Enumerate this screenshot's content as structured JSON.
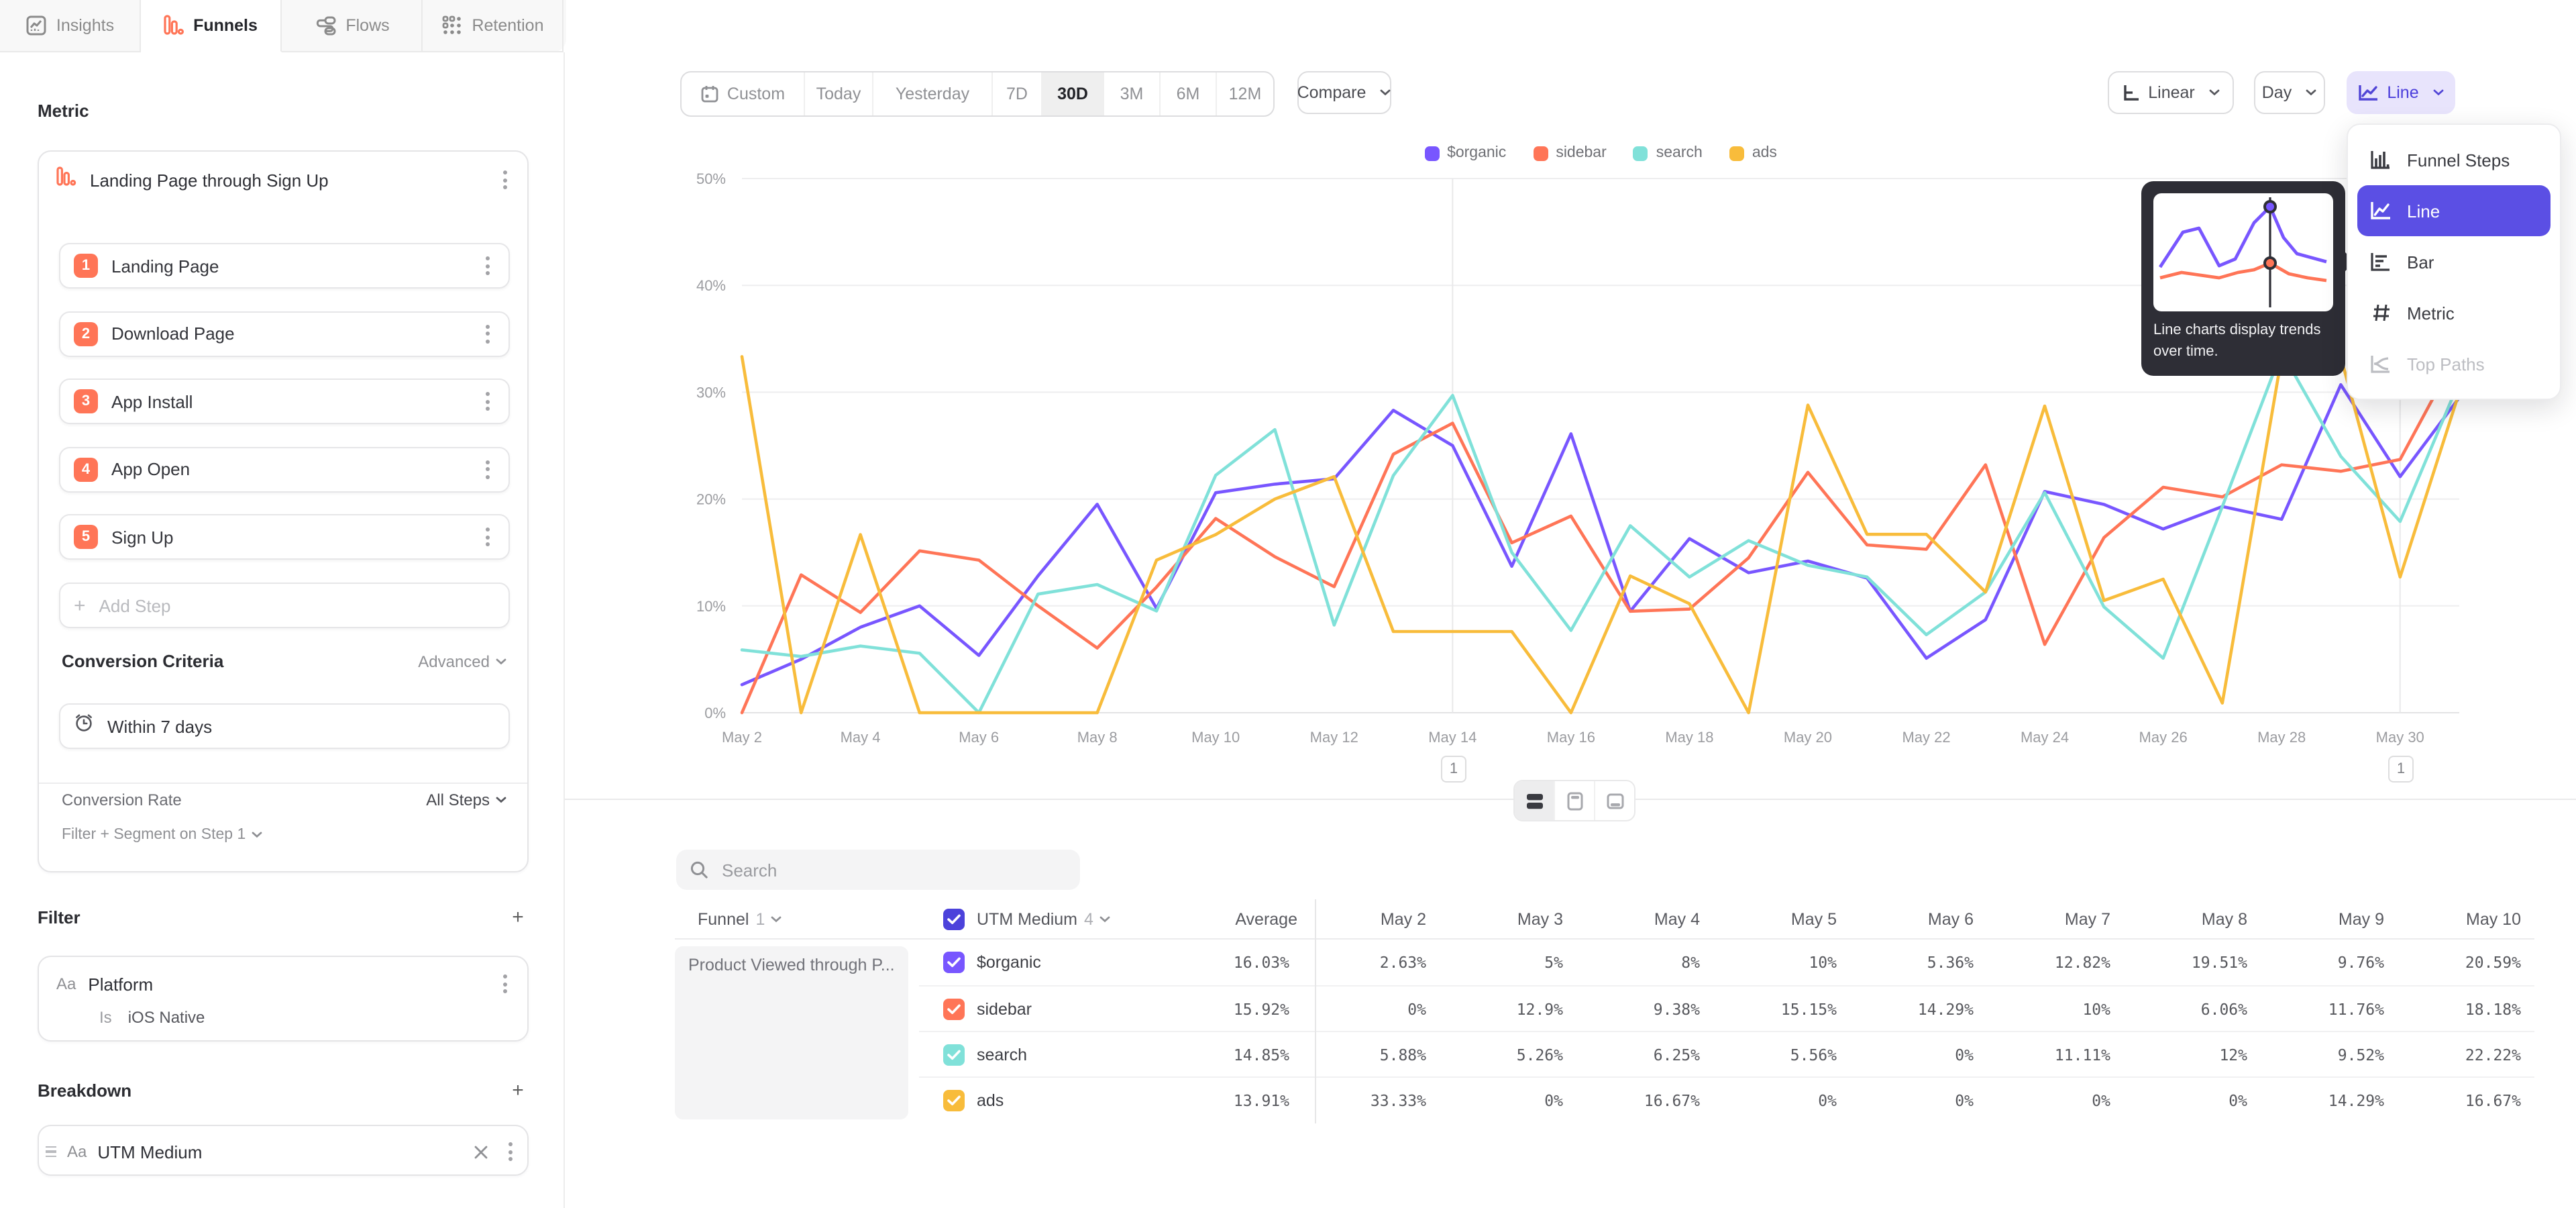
{
  "tabs": [
    {
      "label": "Insights",
      "icon": "insights-icon",
      "active": false
    },
    {
      "label": "Funnels",
      "icon": "funnels-icon",
      "active": true
    },
    {
      "label": "Flows",
      "icon": "flows-icon",
      "active": false
    },
    {
      "label": "Retention",
      "icon": "retention-icon",
      "active": false
    }
  ],
  "sidebar": {
    "metric_heading": "Metric",
    "funnel_name": "Landing Page through Sign Up",
    "steps": [
      {
        "num": "1",
        "label": "Landing Page"
      },
      {
        "num": "2",
        "label": "Download Page"
      },
      {
        "num": "3",
        "label": "App Install"
      },
      {
        "num": "4",
        "label": "App Open"
      },
      {
        "num": "5",
        "label": "Sign Up"
      }
    ],
    "add_step_label": "Add Step",
    "conversion_criteria": {
      "heading": "Conversion Criteria",
      "advanced_label": "Advanced",
      "window_label": "Within 7 days",
      "rate_label": "Conversion Rate",
      "rate_value": "All Steps",
      "filter_segment_label": "Filter + Segment on Step 1"
    },
    "filter": {
      "heading": "Filter",
      "type_icon": "Aa",
      "property": "Platform",
      "operator": "Is",
      "value": "iOS Native"
    },
    "breakdown": {
      "heading": "Breakdown",
      "type_icon": "Aa",
      "property": "UTM Medium"
    }
  },
  "toolbar": {
    "date_ranges": [
      "Custom",
      "Today",
      "Yesterday",
      "7D",
      "30D",
      "3M",
      "6M",
      "12M"
    ],
    "active_range": "30D",
    "compare_label": "Compare",
    "scale_label": "Linear",
    "granularity_label": "Day",
    "chart_type_label": "Line"
  },
  "chart_menu": {
    "items": [
      {
        "label": "Funnel Steps",
        "icon": "funnel-steps-icon",
        "state": "normal"
      },
      {
        "label": "Line",
        "icon": "line-chart-icon",
        "state": "selected"
      },
      {
        "label": "Bar",
        "icon": "bar-chart-icon",
        "state": "normal"
      },
      {
        "label": "Metric",
        "icon": "metric-icon",
        "state": "normal"
      },
      {
        "label": "Top Paths",
        "icon": "top-paths-icon",
        "state": "disabled"
      }
    ],
    "tooltip_text": "Line charts display trends over time."
  },
  "chart_data": {
    "type": "line",
    "title": "",
    "xlabel": "",
    "ylabel": "",
    "ylim": [
      0,
      50
    ],
    "yticks": [
      "0%",
      "10%",
      "20%",
      "30%",
      "40%",
      "50%"
    ],
    "grid": "horizontal",
    "legend_position": "top",
    "x": [
      "May 2",
      "May 3",
      "May 4",
      "May 5",
      "May 6",
      "May 7",
      "May 8",
      "May 9",
      "May 10",
      "May 11",
      "May 12",
      "May 13",
      "May 14",
      "May 15",
      "May 16",
      "May 17",
      "May 18",
      "May 19",
      "May 20",
      "May 21",
      "May 22",
      "May 23",
      "May 24",
      "May 25",
      "May 26",
      "May 27",
      "May 28",
      "May 29",
      "May 30",
      "May 31"
    ],
    "x_tick_labels": [
      "May 2",
      "May 4",
      "May 6",
      "May 8",
      "May 10",
      "May 12",
      "May 14",
      "May 16",
      "May 18",
      "May 20",
      "May 22",
      "May 24",
      "May 26",
      "May 28",
      "May 30"
    ],
    "vertical_marker_dates": [
      "May 14",
      "May 30"
    ],
    "annotations": [
      {
        "label": "1",
        "date": "May 14"
      },
      {
        "label": "1",
        "date": "May 30"
      }
    ],
    "series": [
      {
        "name": "$organic",
        "color": "#7856FF",
        "values": [
          2.63,
          5,
          8,
          10,
          5.36,
          12.82,
          19.51,
          9.76,
          20.59,
          21.4,
          21.9,
          28.3,
          25,
          13.7,
          26.1,
          9.5,
          16.3,
          13.1,
          14.2,
          12.6,
          5.1,
          8.7,
          20.7,
          19.5,
          17.2,
          19.3,
          18.1,
          30.7,
          22.1,
          29.5
        ]
      },
      {
        "name": "sidebar",
        "color": "#FF7557",
        "values": [
          0,
          12.9,
          9.38,
          15.15,
          14.29,
          10,
          6.06,
          11.76,
          18.18,
          14.6,
          11.8,
          24.2,
          27.1,
          15.9,
          18.4,
          9.5,
          9.7,
          14.5,
          22.5,
          15.7,
          15.3,
          23.2,
          6.4,
          16.4,
          21.1,
          20.2,
          23.2,
          22.6,
          23.7,
          34
        ]
      },
      {
        "name": "search",
        "color": "#80E1D9",
        "values": [
          5.88,
          5.26,
          6.25,
          5.56,
          0,
          11.11,
          12,
          9.52,
          22.22,
          26.5,
          8.2,
          22.2,
          29.7,
          15,
          7.7,
          17.5,
          12.7,
          16.1,
          13.8,
          12.7,
          7.3,
          11.3,
          20.6,
          9.9,
          5.1,
          19.3,
          33.8,
          24,
          17.9,
          31
        ]
      },
      {
        "name": "ads",
        "color": "#F8BC3B",
        "values": [
          33.33,
          0,
          16.67,
          0,
          0,
          0,
          0,
          14.29,
          16.67,
          20,
          22.1,
          7.6,
          7.6,
          7.6,
          0,
          12.8,
          10.2,
          0,
          28.8,
          16.7,
          16.7,
          11.3,
          28.7,
          10.5,
          12.5,
          0.9,
          33.3,
          33.3,
          12.7,
          30
        ]
      }
    ]
  },
  "table": {
    "search_placeholder": "Search",
    "funnel_header": {
      "label": "Funnel",
      "count": "1"
    },
    "breakdown_header": {
      "label": "UTM Medium",
      "count": "4"
    },
    "average_label": "Average",
    "date_columns": [
      "May 2",
      "May 3",
      "May 4",
      "May 5",
      "May 6",
      "May 7",
      "May 8",
      "May 9",
      "May 10"
    ],
    "funnel_cell": "Product Viewed through P...",
    "rows": [
      {
        "label": "$organic",
        "color": "#7856FF",
        "average": "16.03%",
        "values": [
          "2.63%",
          "5%",
          "8%",
          "10%",
          "5.36%",
          "12.82%",
          "19.51%",
          "9.76%",
          "20.59%"
        ]
      },
      {
        "label": "sidebar",
        "color": "#FF7557",
        "average": "15.92%",
        "values": [
          "0%",
          "12.9%",
          "9.38%",
          "15.15%",
          "14.29%",
          "10%",
          "6.06%",
          "11.76%",
          "18.18%"
        ]
      },
      {
        "label": "search",
        "color": "#80E1D9",
        "average": "14.85%",
        "values": [
          "5.88%",
          "5.26%",
          "6.25%",
          "5.56%",
          "0%",
          "11.11%",
          "12%",
          "9.52%",
          "22.22%"
        ]
      },
      {
        "label": "ads",
        "color": "#F8BC3B",
        "average": "13.91%",
        "values": [
          "33.33%",
          "0%",
          "16.67%",
          "0%",
          "0%",
          "0%",
          "0%",
          "14.29%",
          "16.67%"
        ]
      }
    ]
  },
  "colors": {
    "accent": "#7856FF",
    "selected_menu_item": "#5B4FE4",
    "chart_palette": [
      "#7856FF",
      "#FF7557",
      "#80E1D9",
      "#F8BC3B"
    ],
    "step_badge": "#FF7557",
    "chart_type_button_bg": "#E8E4FC",
    "header_checkbox": "#4C42DB"
  }
}
